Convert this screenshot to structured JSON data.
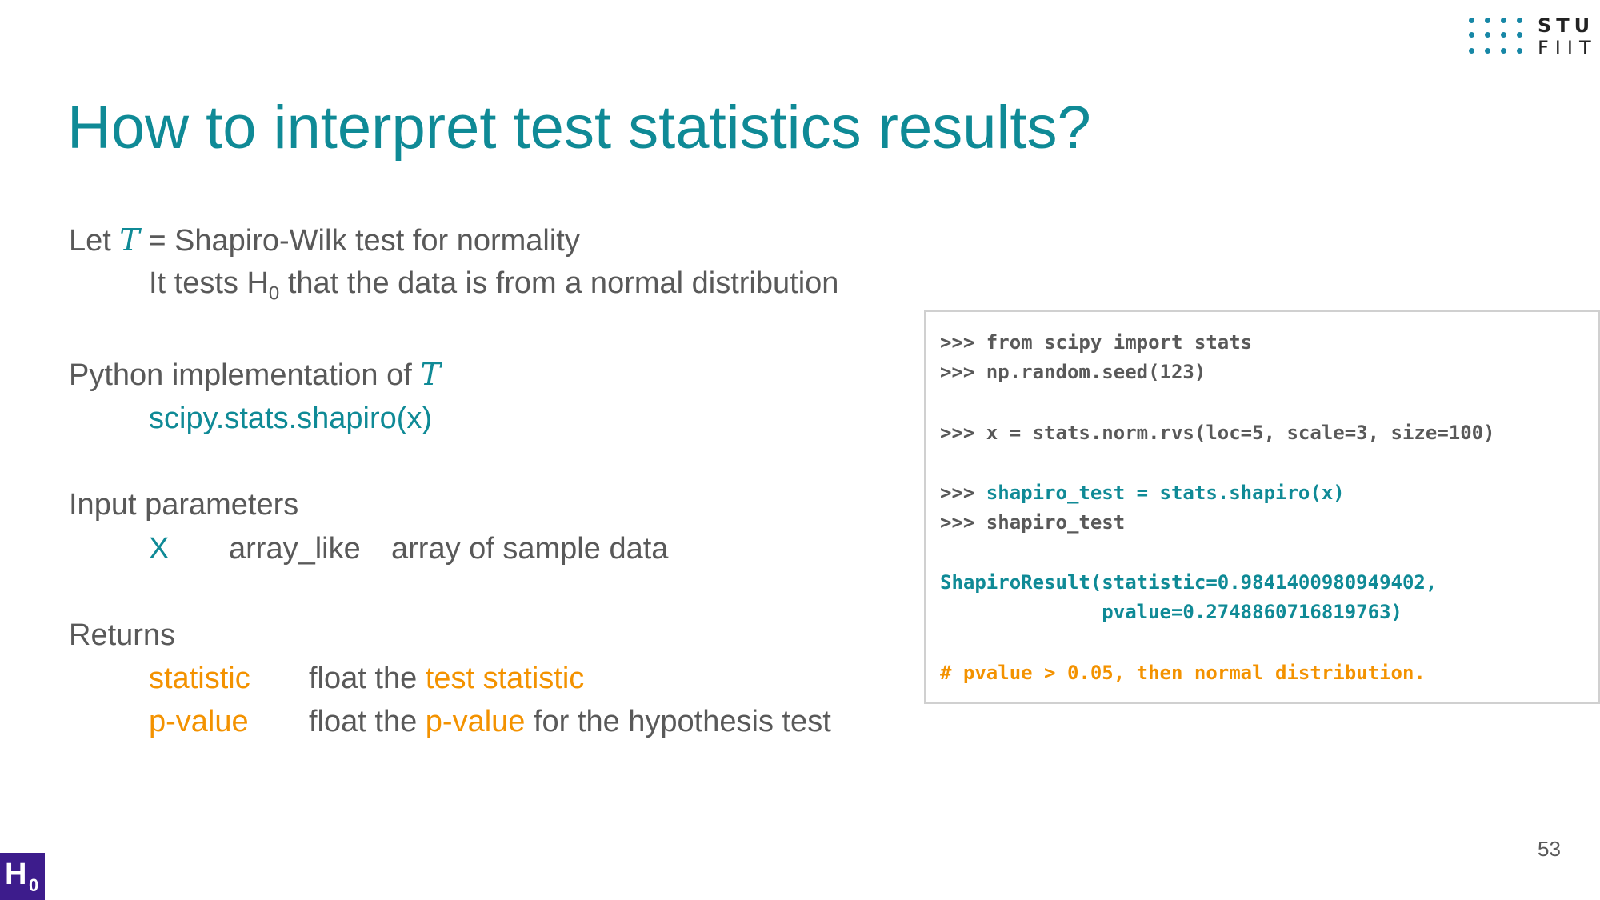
{
  "logo": {
    "line1": "STU",
    "line2": "FIIT"
  },
  "title": "How to interpret test statistics results?",
  "intro": {
    "let_prefix": "Let",
    "symbol": "T",
    "let_suffix": "= Shapiro-Wilk test for normality",
    "tests_prefix": "It tests H",
    "tests_sub": "0",
    "tests_suffix": "that the data is from a normal distribution"
  },
  "python": {
    "heading": "Python implementation of",
    "symbol": "T",
    "function": "scipy.stats.shapiro(x)"
  },
  "inputs": {
    "heading": "Input parameters",
    "param_name": "X",
    "param_type": "array_like",
    "param_desc": "array of sample data"
  },
  "returns": {
    "heading": "Returns",
    "stat_name": "statistic",
    "stat_type": "float the",
    "stat_desc": "test statistic",
    "p_name": "p-value",
    "p_type": "float the",
    "p_desc": "p-value",
    "p_suffix": "for the hypothesis test"
  },
  "code": {
    "line1": ">>> from scipy import stats",
    "line2": ">>> np.random.seed(123)",
    "line3": ">>> x = stats.norm.rvs(loc=5, scale=3, size=100)",
    "line4_prompt": ">>> ",
    "line4_code": "shapiro_test = stats.shapiro(x)",
    "line5": ">>> shapiro_test",
    "line6": "ShapiroResult(statistic=0.9841400980949402,",
    "line7": "              pvalue=0.2748860716819763)",
    "line8": "# pvalue > 0.05, then normal distribution."
  },
  "page_number": "53",
  "badge": {
    "letter": "H",
    "sub": "0"
  },
  "colors": {
    "teal": "#0f8a96",
    "orange": "#f39200",
    "gray": "#595959",
    "badge": "#3d1c8c"
  }
}
